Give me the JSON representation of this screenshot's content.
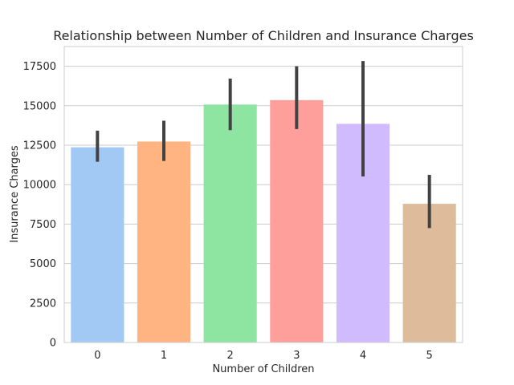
{
  "chart_data": {
    "type": "bar",
    "title": "Relationship between Number of Children and Insurance Charges",
    "xlabel": "Number of Children",
    "ylabel": "Insurance Charges",
    "categories": [
      "0",
      "1",
      "2",
      "3",
      "4",
      "5"
    ],
    "values": [
      12366,
      12731,
      15074,
      15355,
      13851,
      8786
    ],
    "error_bars": [
      [
        11450,
        13420
      ],
      [
        11500,
        14050
      ],
      [
        13450,
        16720
      ],
      [
        13520,
        17500
      ],
      [
        10520,
        17830
      ],
      [
        7250,
        10620
      ]
    ],
    "colors": [
      "#a1c9f4",
      "#ffb482",
      "#8de5a1",
      "#ff9f9b",
      "#d0bbff",
      "#debb9b"
    ],
    "ylim": [
      0,
      18750
    ],
    "yticks": [
      0,
      2500,
      5000,
      7500,
      10000,
      12500,
      15000,
      17500
    ],
    "grid": true,
    "legend": "none"
  }
}
